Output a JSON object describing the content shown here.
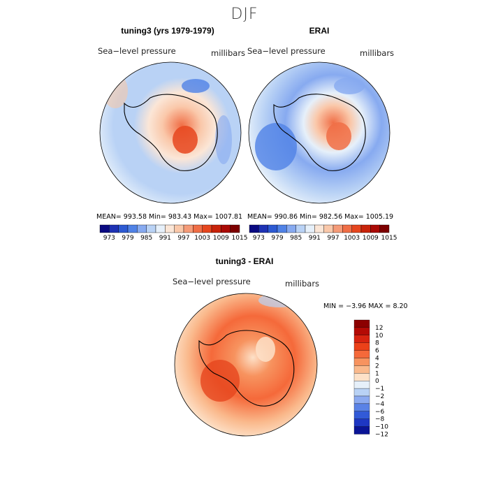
{
  "season": "DJF",
  "palette": {
    "levels": [
      "973",
      "979",
      "985",
      "991",
      "997",
      "1003",
      "1009",
      "1015"
    ],
    "colors": [
      "#0a0a82",
      "#1e32b4",
      "#2d5ad2",
      "#5082e6",
      "#87aaf0",
      "#b9d2f5",
      "#e6f0fa",
      "#fbe6d7",
      "#fac8aa",
      "#f59b78",
      "#f06e46",
      "#e6461e",
      "#c8230a",
      "#aa0a05",
      "#7d0000"
    ]
  },
  "diff_palette": {
    "labels": [
      "12",
      "10",
      "8",
      "6",
      "4",
      "2",
      "1",
      "0",
      "−1",
      "−2",
      "−4",
      "−6",
      "−8",
      "−10",
      "−12"
    ],
    "colors": [
      "#8c0000",
      "#b40a05",
      "#d72310",
      "#eb4119",
      "#f5693a",
      "#f7935f",
      "#fab98c",
      "#fde1c8",
      "#e6f0fa",
      "#b9d2f5",
      "#8caaf0",
      "#5a82e6",
      "#325ad7",
      "#1e37c3",
      "#0a1496"
    ]
  },
  "chart_data": [
    {
      "type": "contour",
      "panel": "model",
      "title": "tuning3 (yrs 1979-1979)",
      "variable": "Sea−level pressure",
      "units": "millibars",
      "stats": {
        "mean": "993.58",
        "min": "983.43",
        "max": "1007.81"
      },
      "stats_text": "MEAN=  993.58    Min=  983.43    Max=  1007.81"
    },
    {
      "type": "contour",
      "panel": "obs",
      "title": "ERAI",
      "variable": "Sea−level pressure",
      "units": "millibars",
      "stats": {
        "mean": "990.86",
        "min": "982.56",
        "max": "1005.19"
      },
      "stats_text": "MEAN=  990.86    Min=  982.56    Max=  1005.19"
    },
    {
      "type": "contour",
      "panel": "difference",
      "title": "tuning3 - ERAI",
      "variable": "Sea−level pressure",
      "units": "millibars",
      "stats": {
        "min": "−3.96",
        "max": "8.20"
      },
      "stats_text": "MIN =    −3.96  MAX =     8.20"
    }
  ]
}
